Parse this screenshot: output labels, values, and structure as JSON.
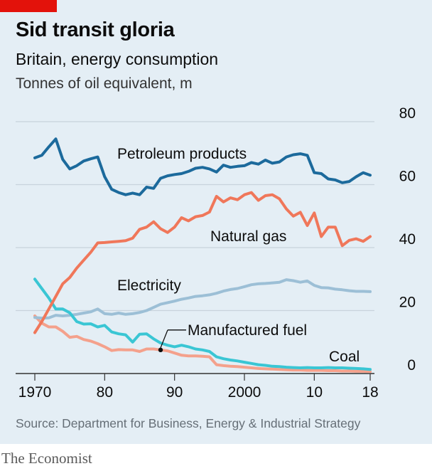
{
  "header": {
    "title": "Sid transit gloria",
    "subtitle": "Britain, energy consumption",
    "unit": "Tonnes of oil equivalent, m"
  },
  "footer": {
    "source": "Source: Department for Business, Energy & Industrial Strategy",
    "brand": "The Economist"
  },
  "colors": {
    "background": "#e4eef5",
    "petroleum": "#1c6a9c",
    "natural_gas": "#f0775a",
    "electricity": "#9cbfd6",
    "coal": "#3ac6d4",
    "manufactured_fuel": "#f4a18c",
    "grid": "#c8d3dc",
    "brand_red": "#e3120b"
  },
  "chart_data": {
    "type": "line",
    "ylim": [
      0,
      80
    ],
    "xlim": [
      1970,
      2018
    ],
    "y_ticks": [
      "0",
      "20",
      "40",
      "60",
      "80"
    ],
    "y_tick_values": [
      0,
      20,
      40,
      60,
      80
    ],
    "x_ticks": [
      "1970",
      "80",
      "90",
      "2000",
      "10",
      "18"
    ],
    "x_tick_values": [
      1970,
      1980,
      1990,
      2000,
      2010,
      2018
    ],
    "grid": true,
    "x": [
      1970,
      1971,
      1972,
      1973,
      1974,
      1975,
      1976,
      1977,
      1978,
      1979,
      1980,
      1981,
      1982,
      1983,
      1984,
      1985,
      1986,
      1987,
      1988,
      1989,
      1990,
      1991,
      1992,
      1993,
      1994,
      1995,
      1996,
      1997,
      1998,
      1999,
      2000,
      2001,
      2002,
      2003,
      2004,
      2005,
      2006,
      2007,
      2008,
      2009,
      2010,
      2011,
      2012,
      2013,
      2014,
      2015,
      2016,
      2017,
      2018
    ],
    "series": [
      {
        "name": "Petroleum products",
        "key": "petroleum",
        "values": [
          68.5,
          69.3,
          72.0,
          74.5,
          68.0,
          65.0,
          66.0,
          67.5,
          68.2,
          68.8,
          62.5,
          58.5,
          57.5,
          56.8,
          57.3,
          56.8,
          59.2,
          58.8,
          62.0,
          62.8,
          63.2,
          63.5,
          64.2,
          65.2,
          65.5,
          65.0,
          64.0,
          66.2,
          65.5,
          65.8,
          66.0,
          67.0,
          66.5,
          67.8,
          66.8,
          67.2,
          68.8,
          69.5,
          69.8,
          69.3,
          63.8,
          63.5,
          61.8,
          61.5,
          60.6,
          61.0,
          62.5,
          63.8,
          63.0
        ]
      },
      {
        "name": "Natural gas",
        "key": "natural_gas",
        "values": [
          13.0,
          16.5,
          20.5,
          24.5,
          28.5,
          30.5,
          33.5,
          36.0,
          38.5,
          41.5,
          41.6,
          41.8,
          42.0,
          42.2,
          43.0,
          45.8,
          46.5,
          48.2,
          46.0,
          44.8,
          46.5,
          49.5,
          48.5,
          49.8,
          50.2,
          51.3,
          56.3,
          54.5,
          55.8,
          55.2,
          56.8,
          57.5,
          55.0,
          56.5,
          56.8,
          55.5,
          52.3,
          50.0,
          51.2,
          47.0,
          51.0,
          43.5,
          46.5,
          46.5,
          40.6,
          42.3,
          42.8,
          42.0,
          43.5
        ]
      },
      {
        "name": "Electricity",
        "key": "electricity",
        "values": [
          17.8,
          17.6,
          17.7,
          18.5,
          18.3,
          18.5,
          18.8,
          19.2,
          19.6,
          20.5,
          19.0,
          18.8,
          19.2,
          18.8,
          19.0,
          19.4,
          20.0,
          21.0,
          22.0,
          22.5,
          23.0,
          23.6,
          24.0,
          24.5,
          24.7,
          25.0,
          25.5,
          26.2,
          26.7,
          27.0,
          27.6,
          28.2,
          28.5,
          28.6,
          28.8,
          29.0,
          29.8,
          29.5,
          29.0,
          29.4,
          28.0,
          27.3,
          27.2,
          26.8,
          26.6,
          26.3,
          26.1,
          26.1,
          26.0
        ]
      },
      {
        "name": "Coal",
        "key": "coal",
        "values": [
          30.0,
          27.0,
          24.0,
          20.5,
          20.5,
          19.3,
          16.5,
          15.7,
          15.8,
          14.8,
          15.3,
          13.2,
          12.6,
          12.3,
          10.0,
          12.5,
          12.6,
          11.0,
          9.7,
          9.0,
          8.5,
          9.0,
          8.5,
          7.8,
          7.5,
          7.0,
          5.3,
          4.7,
          4.3,
          4.0,
          3.6,
          3.2,
          2.8,
          2.6,
          2.3,
          2.2,
          2.0,
          1.9,
          1.8,
          1.9,
          1.8,
          1.8,
          1.9,
          1.8,
          1.8,
          1.7,
          1.6,
          1.5,
          1.3
        ]
      },
      {
        "name": "Manufactured fuel",
        "key": "manufactured_fuel",
        "values": [
          18.3,
          16.0,
          14.8,
          14.8,
          13.4,
          11.5,
          11.8,
          10.8,
          10.3,
          9.5,
          8.5,
          7.3,
          7.6,
          7.5,
          7.5,
          7.0,
          7.8,
          7.8,
          7.5,
          7.2,
          6.5,
          5.8,
          5.6,
          5.6,
          5.5,
          5.3,
          2.8,
          2.5,
          2.3,
          2.2,
          2.0,
          1.8,
          1.6,
          1.5,
          1.4,
          1.3,
          1.2,
          1.1,
          1.1,
          1.0,
          1.0,
          1.0,
          0.9,
          0.9,
          0.8,
          0.8,
          0.7,
          0.7,
          0.6
        ]
      }
    ],
    "annotations": {
      "petroleum": "Petroleum products",
      "natural_gas": "Natural gas",
      "electricity": "Electricity",
      "manufactured_fuel": "Manufactured fuel",
      "coal": "Coal"
    },
    "callout": {
      "series": "manufactured_fuel",
      "x": 1988,
      "y": 7.5
    }
  }
}
